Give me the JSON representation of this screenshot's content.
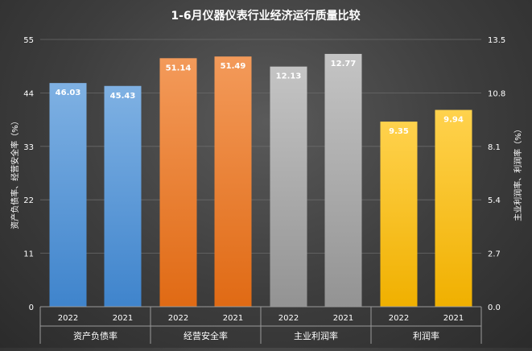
{
  "chart_data": {
    "type": "bar",
    "title": "1-6月仪器仪表行业经济运行质量比较",
    "ylabel_left": "资产负债率、经营安全率（%）",
    "ylabel_right": "主业利润率、利润率（%）",
    "left_axis": {
      "min": 0,
      "max": 55,
      "ticks": [
        0,
        11,
        22,
        33,
        44,
        55
      ]
    },
    "right_axis": {
      "min": 0,
      "max": 13.5,
      "ticks": [
        "0.0",
        "2.7",
        "5.4",
        "8.1",
        "10.8",
        "13.5"
      ]
    },
    "groups": [
      {
        "name": "资产负债率",
        "axis": "left",
        "color": "#5b9bd5",
        "bars": [
          {
            "year": "2022",
            "value": 46.03,
            "label": "46.03"
          },
          {
            "year": "2021",
            "value": 45.43,
            "label": "45.43"
          }
        ]
      },
      {
        "name": "经营安全率",
        "axis": "left",
        "color": "#ed7d31",
        "bars": [
          {
            "year": "2022",
            "value": 51.14,
            "label": "51.14"
          },
          {
            "year": "2021",
            "value": 51.49,
            "label": "51.49"
          }
        ]
      },
      {
        "name": "主业利润率",
        "axis": "right",
        "color": "#a5a5a5",
        "bars": [
          {
            "year": "2022",
            "value": 12.13,
            "label": "12.13"
          },
          {
            "year": "2021",
            "value": 12.77,
            "label": "12.77"
          }
        ]
      },
      {
        "name": "利润率",
        "axis": "right",
        "color": "#ffc000",
        "bars": [
          {
            "year": "2022",
            "value": 9.35,
            "label": "9.35"
          },
          {
            "year": "2021",
            "value": 9.94,
            "label": "9.94"
          }
        ]
      }
    ]
  }
}
